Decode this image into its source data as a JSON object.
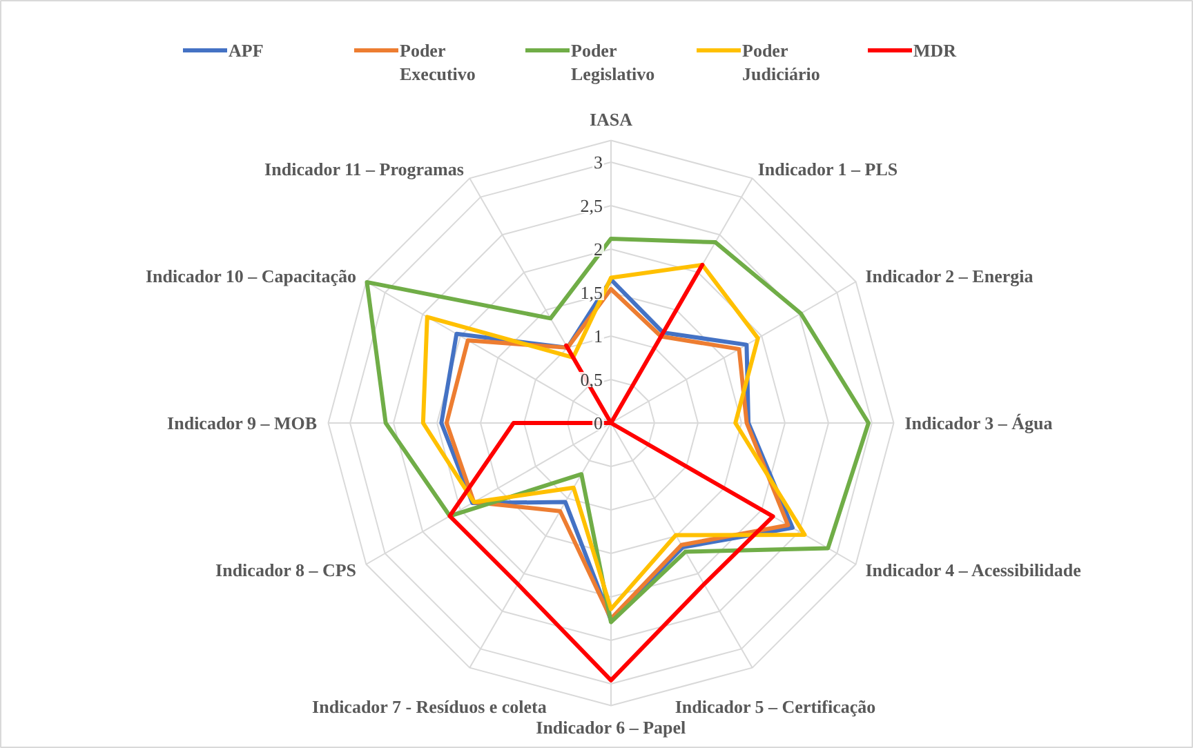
{
  "chart_data": {
    "type": "radar",
    "categories": [
      "IASA",
      "Indicador 1 – PLS",
      "Indicador 2 – Energia",
      "Indicador 3 – Água",
      "Indicador 4 – Acessibilidade",
      "Indicador 5 – Certificação",
      "Indicador 6 – Papel",
      "Indicador 7 - Resíduos e coleta",
      "Indicador 8 – CPS",
      "Indicador 9 – MOB",
      "Indicador 10 – Capacitação",
      "Indicador 11 – Programas"
    ],
    "series": [
      {
        "name": "APF",
        "color": "#4472c4",
        "values": [
          1.65,
          1.2,
          1.8,
          1.58,
          2.41,
          1.65,
          2.27,
          1.05,
          1.84,
          1.95,
          2.05,
          1.0
        ]
      },
      {
        "name": "Poder Executivo",
        "color": "#ed7d31",
        "values": [
          1.54,
          1.15,
          1.7,
          1.56,
          2.35,
          1.62,
          2.25,
          1.17,
          1.82,
          1.89,
          1.9,
          1.0
        ]
      },
      {
        "name": "Poder Legislativo",
        "color": "#70ad47",
        "values": [
          2.12,
          2.4,
          2.52,
          2.96,
          2.88,
          1.71,
          2.29,
          0.68,
          2.14,
          2.59,
          3.24,
          1.39
        ]
      },
      {
        "name": "Poder Judiciário",
        "color": "#ffc000",
        "values": [
          1.67,
          2.1,
          1.95,
          1.43,
          2.57,
          1.49,
          2.14,
          0.86,
          1.82,
          2.16,
          2.44,
          0.87
        ]
      },
      {
        "name": "MDR",
        "color": "#ff0000",
        "values": [
          0,
          2.1,
          0,
          0,
          2.15,
          2.14,
          2.96,
          2.14,
          2.14,
          1.12,
          0,
          1.03
        ]
      }
    ],
    "ylim": [
      0,
      3.25
    ],
    "yticks": [
      0,
      {
        "value": 0.5,
        "label": "0,5"
      },
      1,
      {
        "value": 1.5,
        "label": "1,5"
      },
      2,
      {
        "value": 2.5,
        "label": "2,5"
      },
      3
    ],
    "grid": true,
    "legend": "top"
  }
}
